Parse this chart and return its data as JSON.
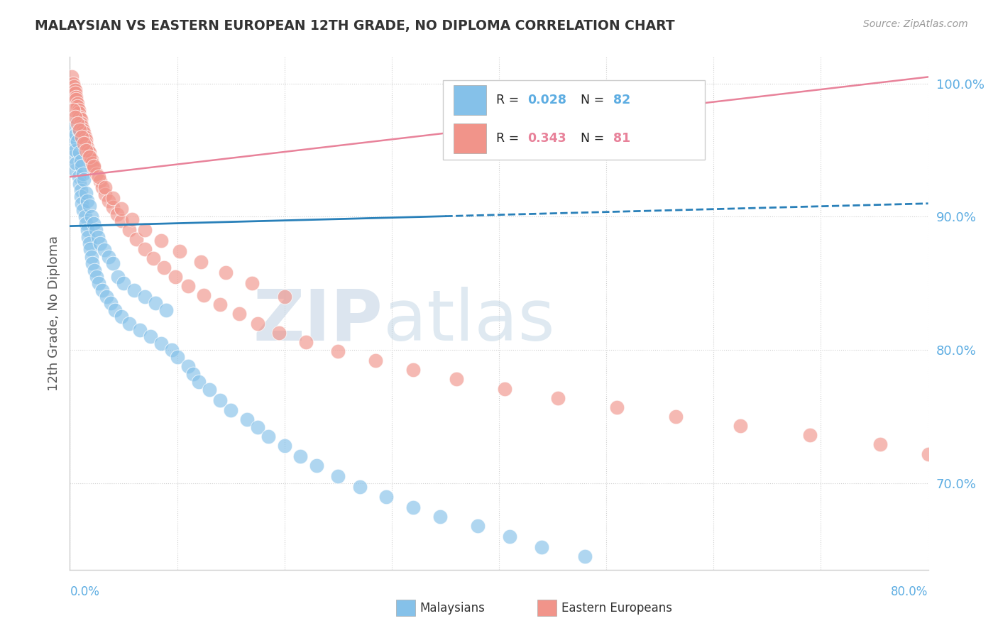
{
  "title": "MALAYSIAN VS EASTERN EUROPEAN 12TH GRADE, NO DIPLOMA CORRELATION CHART",
  "source": "Source: ZipAtlas.com",
  "ylabel": "12th Grade, No Diploma",
  "yticks": [
    "70.0%",
    "80.0%",
    "90.0%",
    "100.0%"
  ],
  "ytick_vals": [
    0.7,
    0.8,
    0.9,
    1.0
  ],
  "xlim": [
    0.0,
    0.8
  ],
  "ylim": [
    0.635,
    1.02
  ],
  "r1": 0.028,
  "n1": 82,
  "r2": 0.343,
  "n2": 81,
  "color_blue": "#85c1e9",
  "color_pink": "#f1948a",
  "color_blue_line": "#2980b9",
  "color_pink_line": "#e8829a",
  "color_axis_label": "#5dade2",
  "watermark_zip_color": "#c8d8e8",
  "watermark_atlas_color": "#c0cfe0",
  "blue_line_y0": 0.893,
  "blue_line_y1": 0.91,
  "pink_line_y0": 0.93,
  "pink_line_y1": 1.005,
  "blue_dots_x": [
    0.002,
    0.003,
    0.003,
    0.004,
    0.005,
    0.005,
    0.006,
    0.006,
    0.007,
    0.007,
    0.008,
    0.008,
    0.009,
    0.009,
    0.01,
    0.01,
    0.01,
    0.011,
    0.011,
    0.012,
    0.012,
    0.013,
    0.014,
    0.015,
    0.015,
    0.016,
    0.016,
    0.017,
    0.018,
    0.018,
    0.019,
    0.02,
    0.02,
    0.021,
    0.022,
    0.023,
    0.024,
    0.025,
    0.026,
    0.027,
    0.028,
    0.03,
    0.032,
    0.034,
    0.036,
    0.038,
    0.04,
    0.042,
    0.045,
    0.048,
    0.05,
    0.055,
    0.06,
    0.065,
    0.07,
    0.075,
    0.08,
    0.085,
    0.09,
    0.095,
    0.1,
    0.11,
    0.115,
    0.12,
    0.13,
    0.14,
    0.15,
    0.165,
    0.175,
    0.185,
    0.2,
    0.215,
    0.23,
    0.25,
    0.27,
    0.295,
    0.32,
    0.345,
    0.38,
    0.41,
    0.44,
    0.48
  ],
  "blue_dots_y": [
    0.955,
    0.96,
    0.945,
    0.968,
    0.935,
    0.95,
    0.94,
    0.962,
    0.957,
    0.972,
    0.93,
    0.965,
    0.925,
    0.948,
    0.92,
    0.942,
    0.915,
    0.938,
    0.91,
    0.932,
    0.905,
    0.928,
    0.9,
    0.895,
    0.918,
    0.89,
    0.912,
    0.885,
    0.908,
    0.88,
    0.876,
    0.87,
    0.9,
    0.865,
    0.895,
    0.86,
    0.89,
    0.855,
    0.885,
    0.85,
    0.88,
    0.845,
    0.875,
    0.84,
    0.87,
    0.835,
    0.865,
    0.83,
    0.855,
    0.825,
    0.85,
    0.82,
    0.845,
    0.815,
    0.84,
    0.81,
    0.835,
    0.805,
    0.83,
    0.8,
    0.795,
    0.788,
    0.782,
    0.776,
    0.77,
    0.762,
    0.755,
    0.748,
    0.742,
    0.735,
    0.728,
    0.72,
    0.713,
    0.705,
    0.697,
    0.69,
    0.682,
    0.675,
    0.668,
    0.66,
    0.652,
    0.645
  ],
  "pink_dots_x": [
    0.002,
    0.003,
    0.004,
    0.005,
    0.005,
    0.006,
    0.006,
    0.007,
    0.007,
    0.008,
    0.008,
    0.009,
    0.01,
    0.01,
    0.011,
    0.012,
    0.013,
    0.014,
    0.015,
    0.015,
    0.016,
    0.017,
    0.018,
    0.019,
    0.02,
    0.021,
    0.022,
    0.025,
    0.028,
    0.03,
    0.033,
    0.036,
    0.04,
    0.044,
    0.048,
    0.055,
    0.062,
    0.07,
    0.078,
    0.088,
    0.098,
    0.11,
    0.125,
    0.14,
    0.158,
    0.175,
    0.195,
    0.22,
    0.25,
    0.285,
    0.32,
    0.36,
    0.405,
    0.455,
    0.51,
    0.565,
    0.625,
    0.69,
    0.755,
    0.8,
    0.003,
    0.005,
    0.007,
    0.009,
    0.011,
    0.013,
    0.015,
    0.018,
    0.022,
    0.027,
    0.033,
    0.04,
    0.048,
    0.058,
    0.07,
    0.085,
    0.102,
    0.122,
    0.145,
    0.17,
    0.2
  ],
  "pink_dots_y": [
    1.005,
    1.0,
    0.998,
    0.995,
    0.993,
    0.99,
    0.988,
    0.985,
    0.983,
    0.98,
    0.978,
    0.975,
    0.973,
    0.97,
    0.968,
    0.965,
    0.963,
    0.96,
    0.958,
    0.955,
    0.952,
    0.95,
    0.948,
    0.945,
    0.943,
    0.94,
    0.937,
    0.932,
    0.927,
    0.922,
    0.917,
    0.912,
    0.907,
    0.902,
    0.897,
    0.89,
    0.883,
    0.876,
    0.869,
    0.862,
    0.855,
    0.848,
    0.841,
    0.834,
    0.827,
    0.82,
    0.813,
    0.806,
    0.799,
    0.792,
    0.785,
    0.778,
    0.771,
    0.764,
    0.757,
    0.75,
    0.743,
    0.736,
    0.729,
    0.722,
    0.98,
    0.975,
    0.97,
    0.965,
    0.96,
    0.955,
    0.95,
    0.945,
    0.938,
    0.93,
    0.922,
    0.914,
    0.906,
    0.898,
    0.89,
    0.882,
    0.874,
    0.866,
    0.858,
    0.85,
    0.84
  ]
}
